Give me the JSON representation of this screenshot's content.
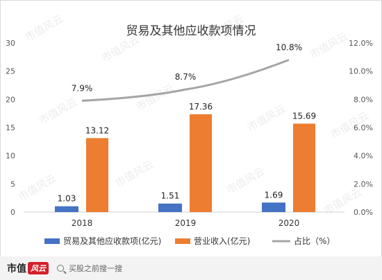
{
  "watermark_text": "市值风云",
  "footer": {
    "logo_text": "市值",
    "logo_badge": "风云",
    "search_placeholder": "买股之前搜一搜"
  },
  "chart_data": {
    "type": "bar+line",
    "title": "贸易及其他应收款项情况",
    "categories": [
      "2018",
      "2019",
      "2020"
    ],
    "y_left": {
      "min": 0,
      "max": 30,
      "ticks": [
        "0",
        "5",
        "10",
        "15",
        "20",
        "25",
        "30"
      ]
    },
    "y_right": {
      "min": 0,
      "max": 12,
      "ticks": [
        "0.0%",
        "2.0%",
        "4.0%",
        "6.0%",
        "8.0%",
        "10.0%",
        "12.0%"
      ]
    },
    "grid": false,
    "legend_position": "bottom",
    "series": [
      {
        "name": "贸易及其他应收款项(亿元)",
        "type": "bar",
        "axis": "left",
        "color": "#4472c4",
        "values": [
          1.03,
          1.51,
          1.69
        ],
        "labels": [
          "1.03",
          "1.51",
          "1.69"
        ]
      },
      {
        "name": "营业收入(亿元)",
        "type": "bar",
        "axis": "left",
        "color": "#ed7d31",
        "values": [
          13.12,
          17.36,
          15.69
        ],
        "labels": [
          "13.12",
          "17.36",
          "15.69"
        ]
      },
      {
        "name": "占比（%）",
        "type": "line",
        "axis": "right",
        "color": "#a5a5a5",
        "values": [
          7.9,
          8.7,
          10.8
        ],
        "labels": [
          "7.9%",
          "8.7%",
          "10.8%"
        ]
      }
    ]
  }
}
